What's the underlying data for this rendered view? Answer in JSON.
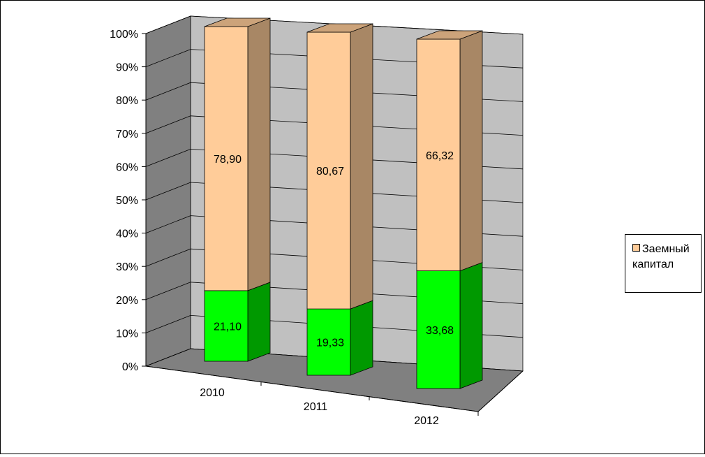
{
  "chart_data": {
    "type": "bar",
    "stacked": true,
    "percent_stacked": true,
    "three_d": true,
    "categories": [
      "2010",
      "2011",
      "2012"
    ],
    "series": [
      {
        "name": "",
        "values": [
          21.1,
          19.33,
          33.68
        ],
        "labels": [
          "21,10",
          "19,33",
          "33,68"
        ],
        "color": "#00ff00"
      },
      {
        "name": "Заемный капитал",
        "values": [
          78.9,
          80.67,
          66.32
        ],
        "labels": [
          "78,90",
          "80,67",
          "66,32"
        ],
        "color": "#ffcc99"
      }
    ],
    "y_ticks": [
      "0%",
      "10%",
      "20%",
      "30%",
      "40%",
      "50%",
      "60%",
      "70%",
      "80%",
      "90%",
      "100%"
    ],
    "ylim": [
      0,
      100
    ],
    "grid": true,
    "legend_position": "right",
    "legend": {
      "label": "Заемный капитал",
      "color": "#ffcc99"
    },
    "colors": {
      "back_wall": "#c0c0c0",
      "side_wall": "#808080",
      "floor": "#808080"
    }
  }
}
